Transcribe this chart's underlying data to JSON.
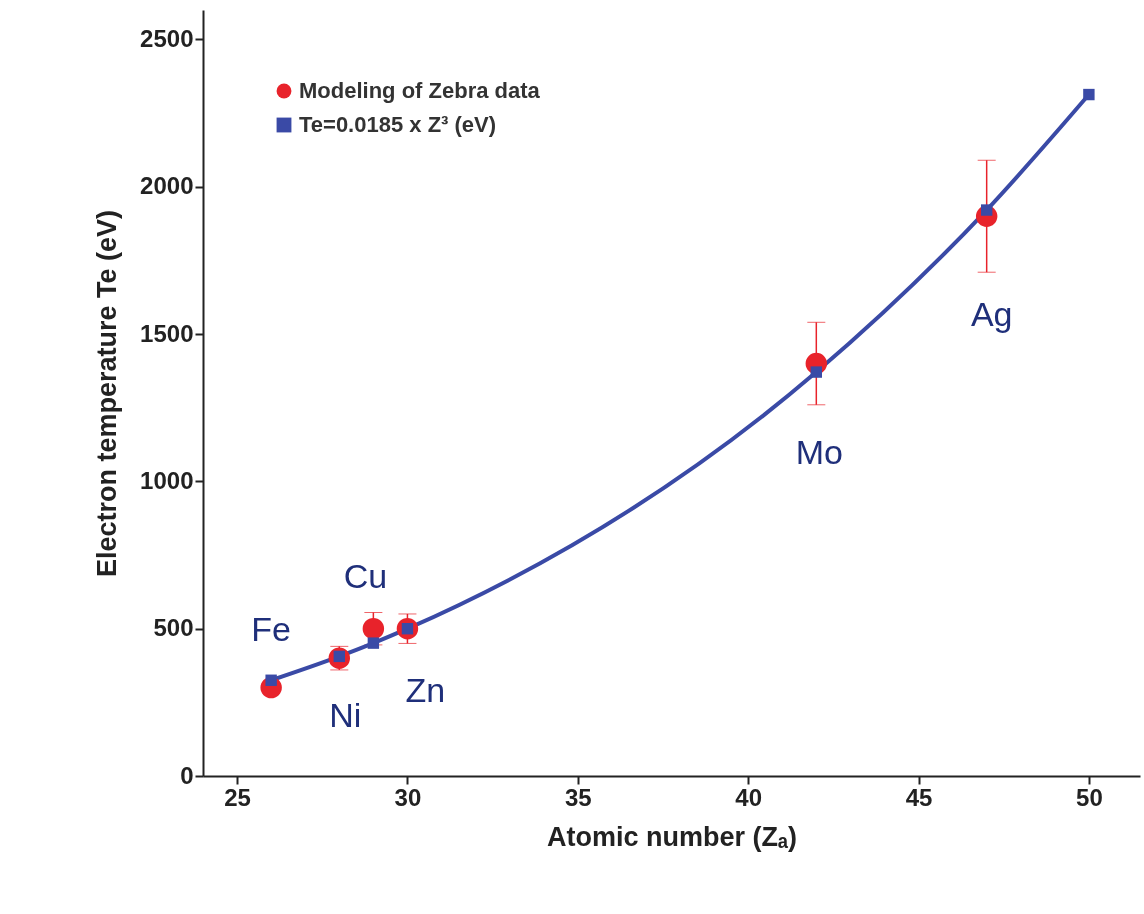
{
  "chart_data": {
    "type": "scatter",
    "xlabel": "Atomic number (Zₐ)",
    "ylabel": "Electron temperature Te (eV)",
    "xlim": [
      24,
      51.5
    ],
    "ylim": [
      0,
      2600
    ],
    "xticks": [
      25,
      30,
      35,
      40,
      45,
      50
    ],
    "yticks": [
      0,
      500,
      1000,
      1500,
      2000,
      2500
    ],
    "grid": false,
    "legend": "top left",
    "series": [
      {
        "name": "Modeling of Zebra data",
        "marker": "circle",
        "color": "#e8232b",
        "x": [
          26,
          28,
          29,
          30,
          42,
          47
        ],
        "values": [
          300,
          400,
          500,
          500,
          1400,
          1900
        ],
        "errors": [
          null,
          40,
          55,
          50,
          140,
          190
        ]
      },
      {
        "name": "Te=0.0185 x Z³ (eV)",
        "type": "line",
        "marker": "square",
        "color": "#3a4aa6",
        "x": [
          26,
          28,
          29,
          30,
          42,
          47,
          50
        ],
        "values": [
          325,
          406,
          451,
          500,
          1371,
          1921,
          2313
        ]
      }
    ],
    "annotations": [
      {
        "text": "Fe",
        "x": 26,
        "y": 300
      },
      {
        "text": "Ni",
        "x": 28,
        "y": 400
      },
      {
        "text": "Cu",
        "x": 29,
        "y": 500
      },
      {
        "text": "Zn",
        "x": 30,
        "y": 500
      },
      {
        "text": "Mo",
        "x": 42,
        "y": 1400
      },
      {
        "text": "Ag",
        "x": 47,
        "y": 1900
      }
    ]
  }
}
